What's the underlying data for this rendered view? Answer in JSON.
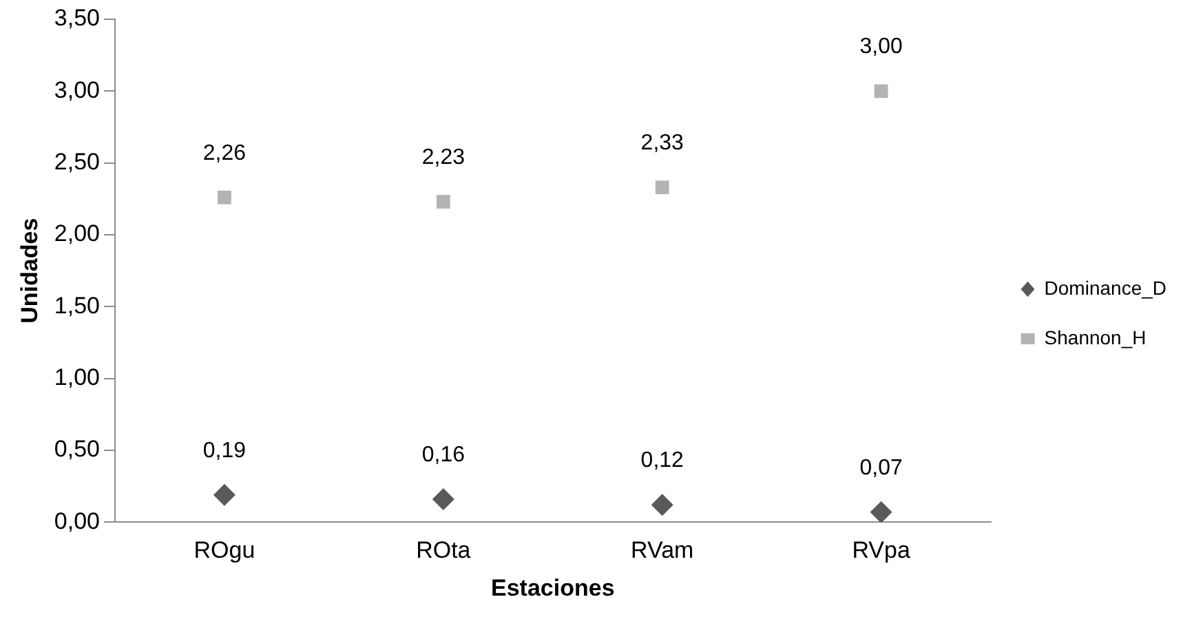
{
  "chart_data": {
    "type": "scatter",
    "xlabel": "Estaciones",
    "ylabel": "Unidades",
    "categories": [
      "ROgu",
      "ROta",
      "RVam",
      "RVpa"
    ],
    "series": [
      {
        "name": "Dominance_D",
        "color": "#595959",
        "marker": "diamond",
        "values": [
          0.19,
          0.16,
          0.12,
          0.07
        ],
        "value_labels": [
          "0,19",
          "0,16",
          "0,12",
          "0,07"
        ]
      },
      {
        "name": "Shannon_H",
        "color": "#b3b3b3",
        "marker": "square",
        "values": [
          2.26,
          2.23,
          2.33,
          3.0
        ],
        "value_labels": [
          "2,26",
          "2,23",
          "2,33",
          "3,00"
        ]
      }
    ],
    "ylim": [
      0,
      3.5
    ],
    "yticks": [
      {
        "value": 0,
        "label": "0,00"
      },
      {
        "value": 0.5,
        "label": "0,50"
      },
      {
        "value": 1,
        "label": "1,00"
      },
      {
        "value": 1.5,
        "label": "1,50"
      },
      {
        "value": 2,
        "label": "2,00"
      },
      {
        "value": 2.5,
        "label": "2,50"
      },
      {
        "value": 3,
        "label": "3,00"
      },
      {
        "value": 3.5,
        "label": "3,50"
      }
    ],
    "grid": false,
    "legend": "right"
  }
}
